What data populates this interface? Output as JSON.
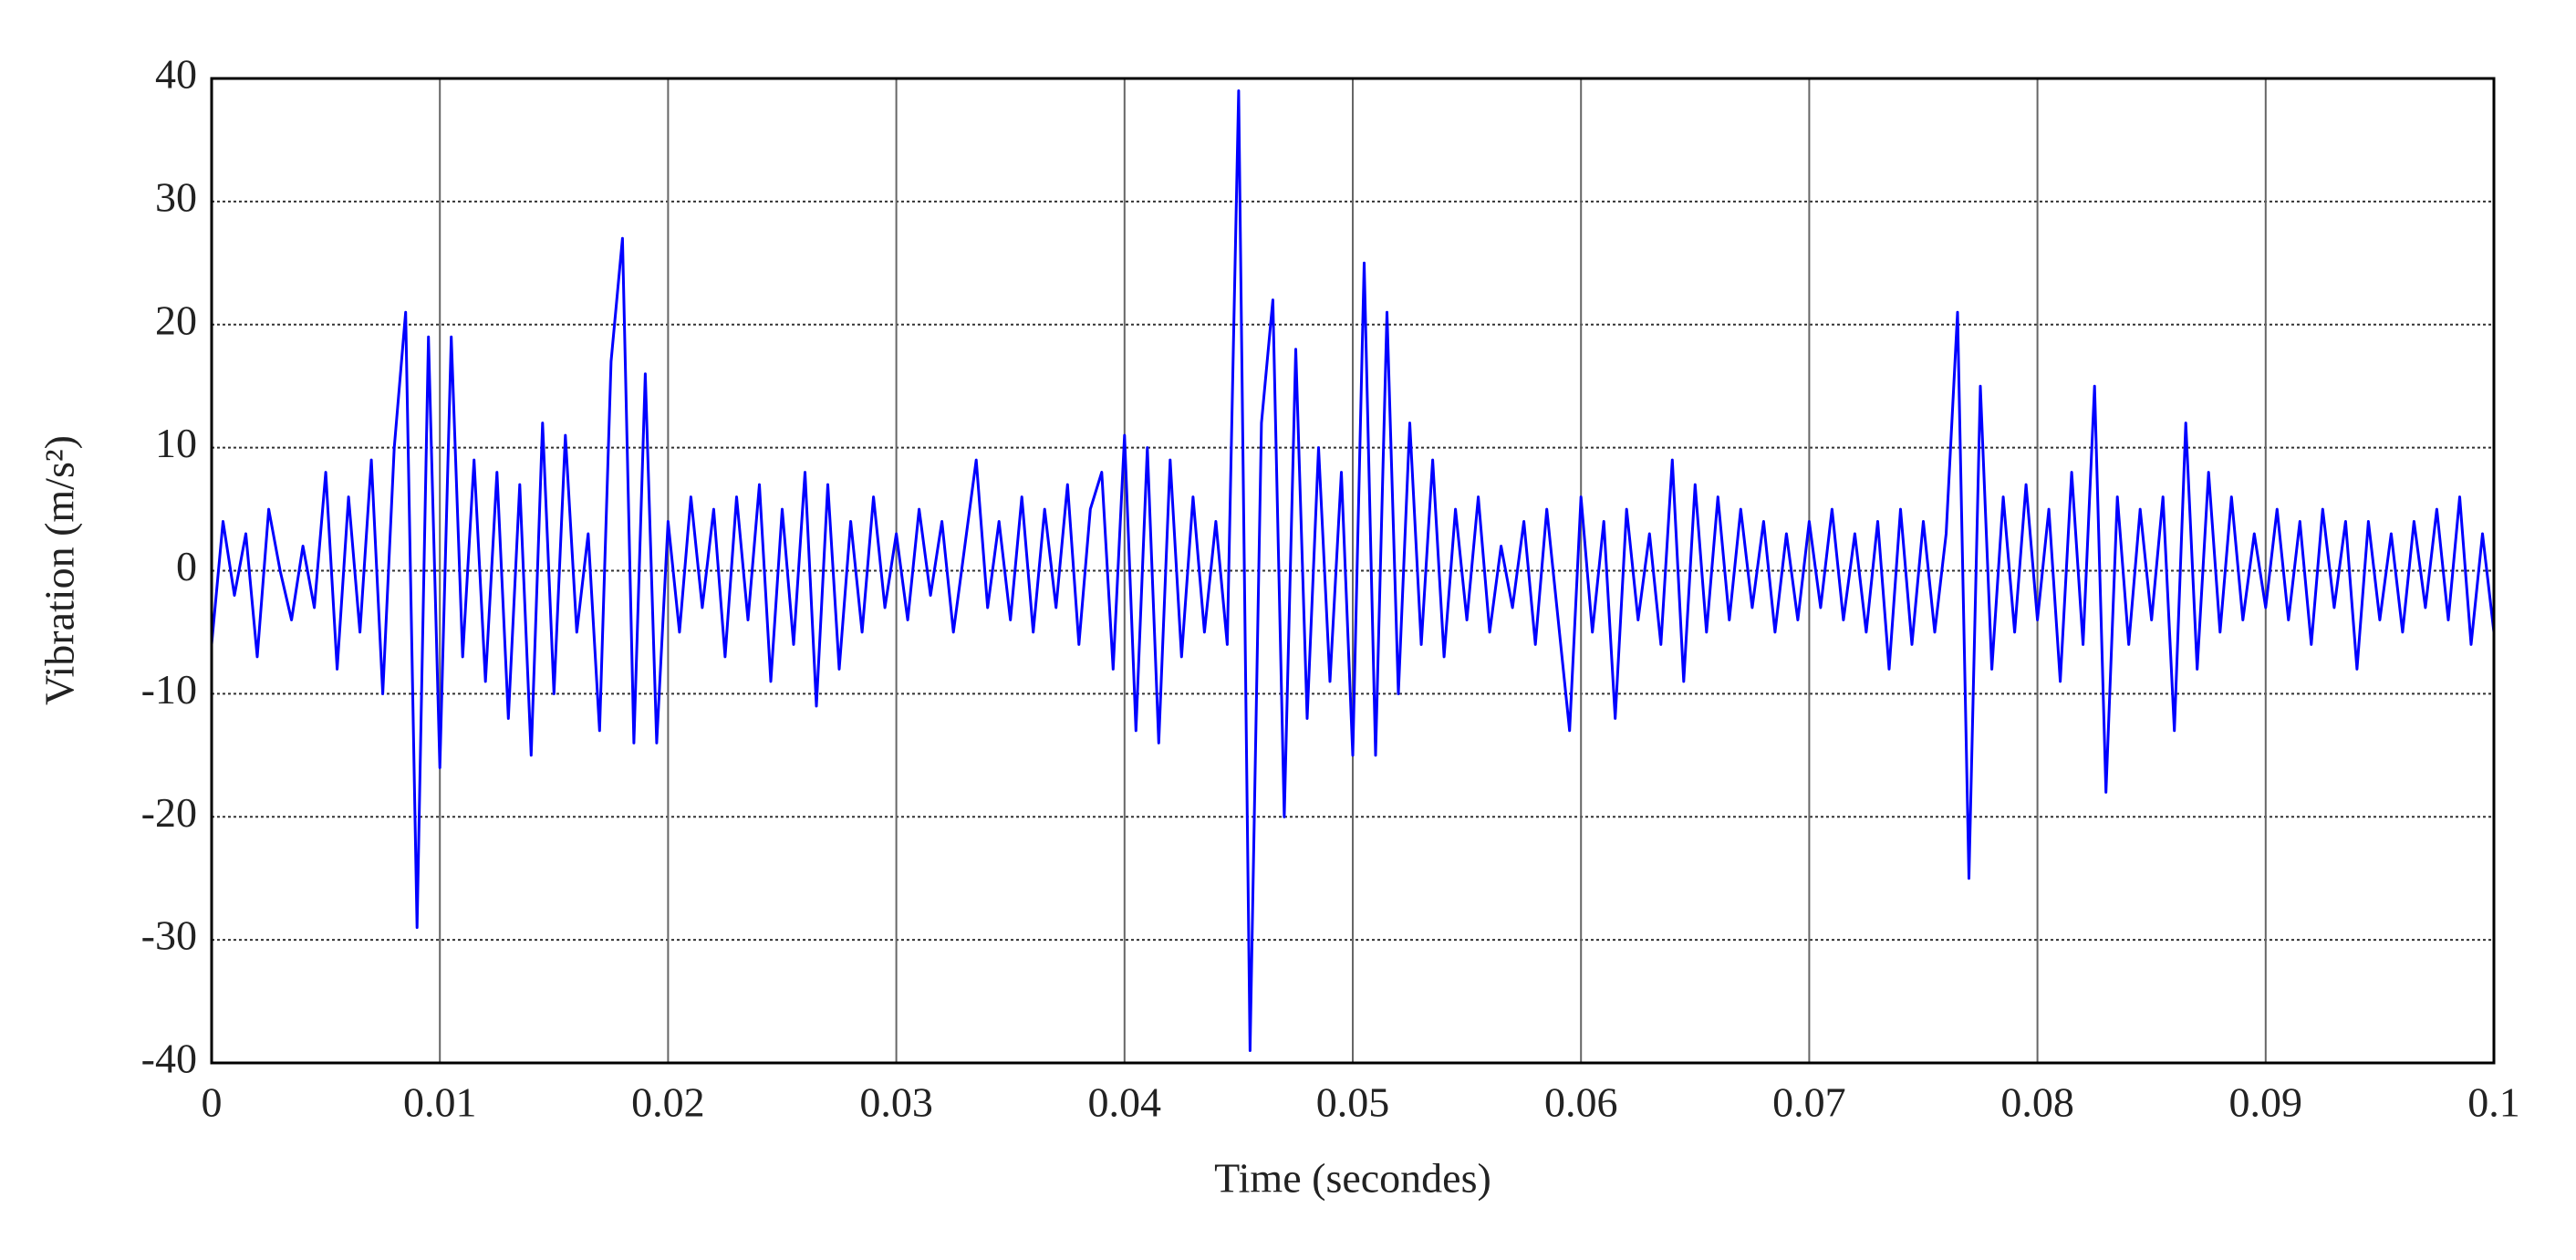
{
  "chart_data": {
    "type": "line",
    "xlabel": "Time (secondes)",
    "ylabel": "Vibration (m/s²)",
    "xlim": [
      0,
      0.1
    ],
    "xticks": [
      0,
      0.01,
      0.02,
      0.03,
      0.04,
      0.05,
      0.06,
      0.07,
      0.08,
      0.09,
      0.1
    ],
    "ylim": [
      -40,
      40
    ],
    "yticks": [
      -40,
      -30,
      -20,
      -10,
      0,
      10,
      20,
      30,
      40
    ],
    "grid": true,
    "x": [
      0,
      0.0005,
      0.001,
      0.0015,
      0.002,
      0.0025,
      0.003,
      0.0035,
      0.004,
      0.0045,
      0.005,
      0.0055,
      0.006,
      0.0065,
      0.007,
      0.0075,
      0.008,
      0.0085,
      0.009,
      0.0095,
      0.01,
      0.0105,
      0.011,
      0.0115,
      0.012,
      0.0125,
      0.013,
      0.0135,
      0.014,
      0.0145,
      0.015,
      0.0155,
      0.016,
      0.0165,
      0.017,
      0.0175,
      0.018,
      0.0185,
      0.019,
      0.0195,
      0.02,
      0.0205,
      0.021,
      0.0215,
      0.022,
      0.0225,
      0.023,
      0.0235,
      0.024,
      0.0245,
      0.025,
      0.0255,
      0.026,
      0.0265,
      0.027,
      0.0275,
      0.028,
      0.0285,
      0.029,
      0.0295,
      0.03,
      0.0305,
      0.031,
      0.0315,
      0.032,
      0.0325,
      0.033,
      0.0335,
      0.034,
      0.0345,
      0.035,
      0.0355,
      0.036,
      0.0365,
      0.037,
      0.0375,
      0.038,
      0.0385,
      0.039,
      0.0395,
      0.04,
      0.0405,
      0.041,
      0.0415,
      0.042,
      0.0425,
      0.043,
      0.0435,
      0.044,
      0.0445,
      0.045,
      0.0455,
      0.046,
      0.0465,
      0.047,
      0.0475,
      0.048,
      0.0485,
      0.049,
      0.0495,
      0.05,
      0.0505,
      0.051,
      0.0515,
      0.052,
      0.0525,
      0.053,
      0.0535,
      0.054,
      0.0545,
      0.055,
      0.0555,
      0.056,
      0.0565,
      0.057,
      0.0575,
      0.058,
      0.0585,
      0.059,
      0.0595,
      0.06,
      0.0605,
      0.061,
      0.0615,
      0.062,
      0.0625,
      0.063,
      0.0635,
      0.064,
      0.0645,
      0.065,
      0.0655,
      0.066,
      0.0665,
      0.067,
      0.0675,
      0.068,
      0.0685,
      0.069,
      0.0695,
      0.07,
      0.0705,
      0.071,
      0.0715,
      0.072,
      0.0725,
      0.073,
      0.0735,
      0.074,
      0.0745,
      0.075,
      0.0755,
      0.076,
      0.0765,
      0.077,
      0.0775,
      0.078,
      0.0785,
      0.079,
      0.0795,
      0.08,
      0.0805,
      0.081,
      0.0815,
      0.082,
      0.0825,
      0.083,
      0.0835,
      0.084,
      0.0845,
      0.085,
      0.0855,
      0.086,
      0.0865,
      0.087,
      0.0875,
      0.088,
      0.0885,
      0.089,
      0.0895,
      0.09,
      0.0905,
      0.091,
      0.0915,
      0.092,
      0.0925,
      0.093,
      0.0935,
      0.094,
      0.0945,
      0.095,
      0.0955,
      0.096,
      0.0965,
      0.097,
      0.0975,
      0.098,
      0.0985,
      0.099,
      0.0995,
      0.1
    ],
    "series": [
      {
        "color": "#0000ff",
        "values": [
          -6,
          4,
          -2,
          3,
          -7,
          5,
          0,
          -4,
          2,
          -3,
          8,
          -8,
          6,
          -5,
          9,
          -10,
          10,
          21,
          -29,
          19,
          -16,
          19,
          -7,
          9,
          -9,
          8,
          -12,
          7,
          -15,
          12,
          -10,
          11,
          -5,
          3,
          -13,
          17,
          27,
          -14,
          16,
          -14,
          4,
          -5,
          6,
          -3,
          5,
          -7,
          6,
          -4,
          7,
          -9,
          5,
          -6,
          8,
          -11,
          7,
          -8,
          4,
          -5,
          6,
          -3,
          3,
          -4,
          5,
          -2,
          4,
          -5,
          2,
          9,
          -3,
          4,
          -4,
          6,
          -5,
          5,
          -3,
          7,
          -6,
          5,
          8,
          -8,
          11,
          -13,
          10,
          -14,
          9,
          -7,
          6,
          -5,
          4,
          -6,
          39,
          -39,
          12,
          22,
          -20,
          18,
          -12,
          10,
          -9,
          8,
          -15,
          25,
          -15,
          21,
          -10,
          12,
          -6,
          9,
          -7,
          5,
          -4,
          6,
          -5,
          2,
          -3,
          4,
          -6,
          5,
          -4,
          -13,
          6,
          -5,
          4,
          -12,
          5,
          -4,
          3,
          -6,
          9,
          -9,
          7,
          -5,
          6,
          -4,
          5,
          -3,
          4,
          -5,
          3,
          -4,
          4,
          -3,
          5,
          -4,
          3,
          -5,
          4,
          -8,
          5,
          -6,
          4,
          -5,
          3,
          21,
          -25,
          15,
          -8,
          6,
          -5,
          7,
          -4,
          5,
          -9,
          8,
          -6,
          15,
          -18,
          6,
          -6,
          5,
          -4,
          6,
          -13,
          12,
          -8,
          8,
          -5,
          6,
          -4,
          3,
          -3,
          5,
          -4,
          4,
          -6,
          5,
          -3,
          4,
          -8,
          4,
          -4,
          3,
          -5,
          4,
          -3,
          5,
          -4,
          6,
          -6,
          3,
          -5
        ]
      }
    ]
  }
}
